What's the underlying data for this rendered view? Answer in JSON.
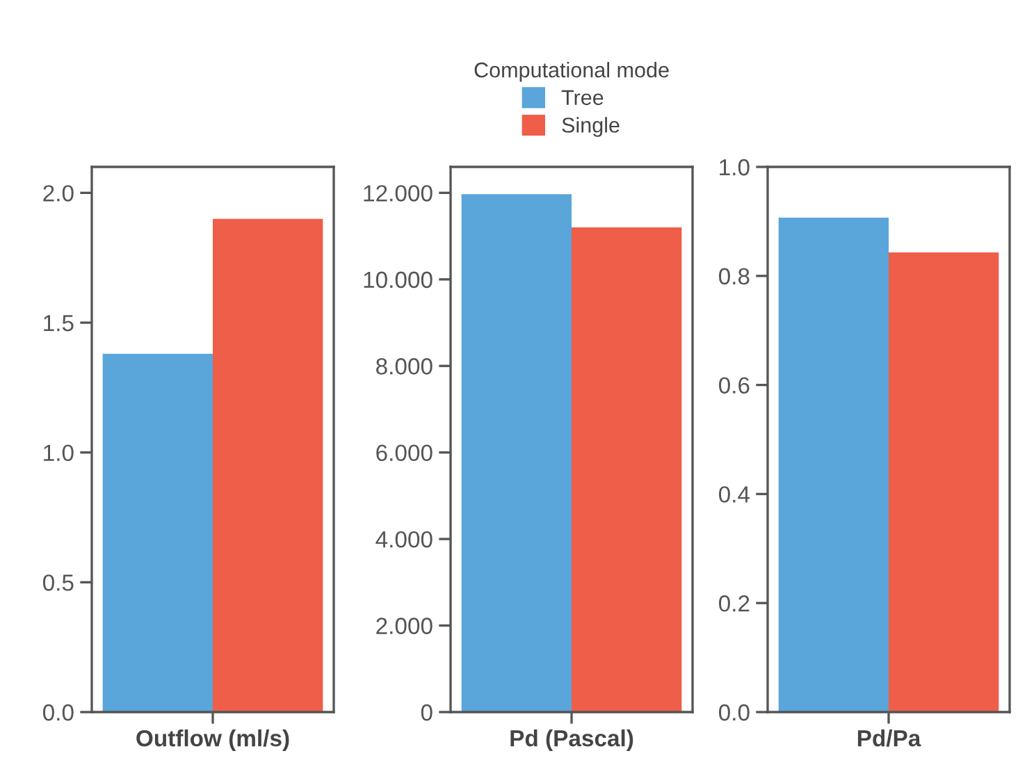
{
  "chart_data": [
    {
      "type": "bar",
      "categories": [
        "Outflow (ml/s)"
      ],
      "series": [
        {
          "color": "#5aa5d9",
          "values": [
            1.38
          ]
        },
        {
          "color": "#ef5e48",
          "values": [
            1.9
          ]
        }
      ],
      "ylim": [
        0,
        2.1
      ],
      "yticks": [
        {
          "value": 0,
          "label": "0.0"
        },
        0.5,
        {
          "value": 1,
          "label": "1.0"
        },
        1.5,
        {
          "value": 2,
          "label": "2.0"
        }
      ],
      "grid": false,
      "legend": false
    },
    {
      "type": "bar",
      "categories": [
        "Pd (Pascal)"
      ],
      "legend_title": "Computational mode",
      "series": [
        {
          "name": "Tree",
          "color": "#5aa5d9",
          "values": [
            11.97
          ]
        },
        {
          "name": "Single",
          "color": "#ef5e48",
          "values": [
            11.2
          ]
        }
      ],
      "ylim": [
        0,
        12.6
      ],
      "yticks": [
        0,
        {
          "value": 2,
          "label": "2.000"
        },
        {
          "value": 4,
          "label": "4.000"
        },
        {
          "value": 6,
          "label": "6.000"
        },
        {
          "value": 8,
          "label": "8.000"
        },
        {
          "value": 10,
          "label": "10.000"
        },
        {
          "value": 12,
          "label": "12.000"
        }
      ],
      "grid": false,
      "legend": "top"
    },
    {
      "type": "bar",
      "categories": [
        "Pd/Pa"
      ],
      "series": [
        {
          "color": "#5aa5d9",
          "values": [
            0.907
          ]
        },
        {
          "color": "#ef5e48",
          "values": [
            0.843
          ]
        }
      ],
      "ylim": [
        0,
        1
      ],
      "yticks": [
        {
          "value": 0,
          "label": "0.0"
        },
        0.2,
        0.4,
        0.6,
        0.8,
        {
          "value": 1,
          "label": "1.0"
        }
      ],
      "grid": false,
      "legend": false
    }
  ]
}
